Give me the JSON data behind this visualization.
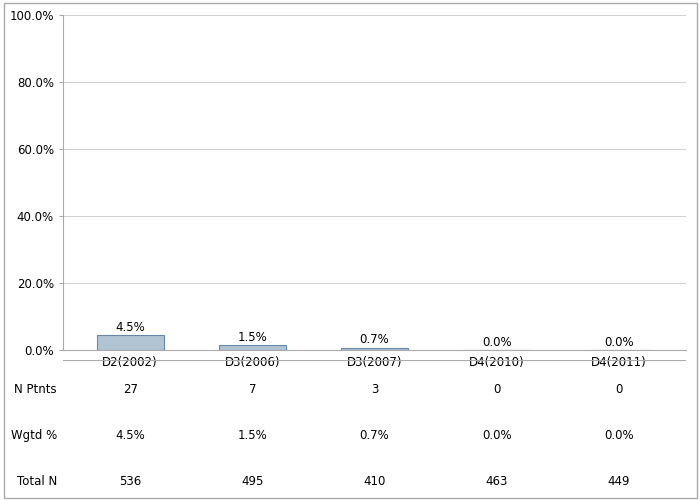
{
  "categories": [
    "D2(2002)",
    "D3(2006)",
    "D3(2007)",
    "D4(2010)",
    "D4(2011)"
  ],
  "values": [
    4.5,
    1.5,
    0.7,
    0.0,
    0.0
  ],
  "bar_color_face": "#b0c4d4",
  "bar_color_edge": "#6688aa",
  "bar_width": 0.55,
  "ylim": [
    0,
    100
  ],
  "yticks": [
    0,
    20,
    40,
    60,
    80,
    100
  ],
  "ytick_labels": [
    "0.0%",
    "20.0%",
    "40.0%",
    "60.0%",
    "80.0%",
    "100.0%"
  ],
  "value_labels": [
    "4.5%",
    "1.5%",
    "0.7%",
    "0.0%",
    "0.0%"
  ],
  "table_rows": {
    "N Ptnts": [
      "27",
      "7",
      "3",
      "0",
      "0"
    ],
    "Wgtd %": [
      "4.5%",
      "1.5%",
      "0.7%",
      "0.0%",
      "0.0%"
    ],
    "Total N": [
      "536",
      "495",
      "410",
      "463",
      "449"
    ]
  },
  "row_order": [
    "N Ptnts",
    "Wgtd %",
    "Total N"
  ],
  "background_color": "#ffffff",
  "grid_color": "#d0d0d0",
  "tick_fontsize": 8.5,
  "table_fontsize": 8.5,
  "value_label_fontsize": 8.5,
  "border_color": "#aaaaaa"
}
